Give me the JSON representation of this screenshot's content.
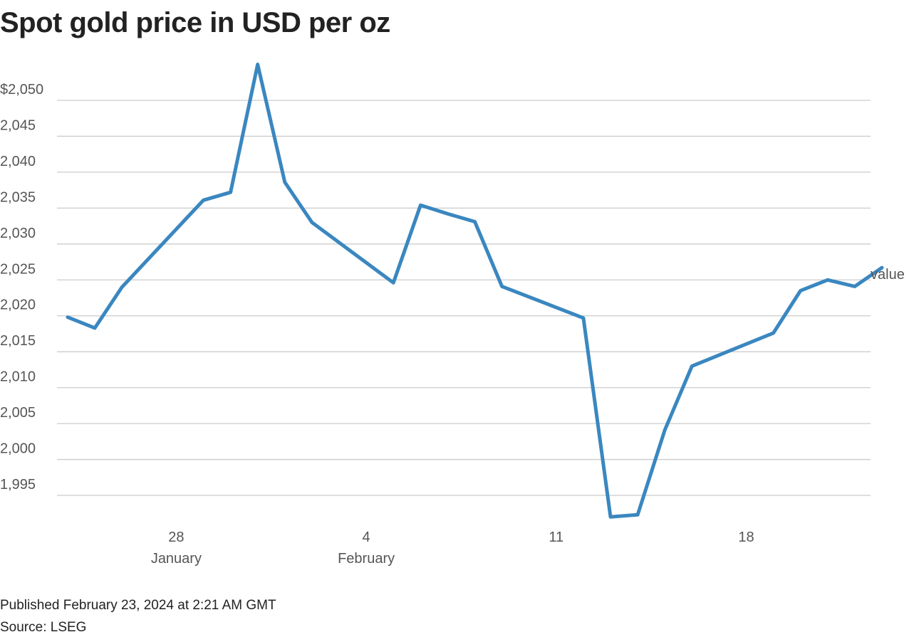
{
  "title": "Spot gold price in USD per oz",
  "footer": {
    "published": "Published February 23, 2024 at 2:21 AM GMT",
    "source": "Source: LSEG"
  },
  "colors": {
    "line": "#3a87c0",
    "grid": "#cccccc",
    "axis_text": "#555555",
    "title": "#222222"
  },
  "chart_data": {
    "type": "line",
    "title": "Spot gold price in USD per oz",
    "xlabel": "",
    "ylabel": "",
    "grid": true,
    "legend": "none",
    "series": [
      {
        "name": "value",
        "x": [
          "2024-01-24",
          "2024-01-25",
          "2024-01-26",
          "2024-01-29",
          "2024-01-30",
          "2024-01-31",
          "2024-02-01",
          "2024-02-02",
          "2024-02-05",
          "2024-02-06",
          "2024-02-07",
          "2024-02-08",
          "2024-02-09",
          "2024-02-12",
          "2024-02-13",
          "2024-02-14",
          "2024-02-15",
          "2024-02-16",
          "2024-02-19",
          "2024-02-20",
          "2024-02-21",
          "2024-02-22",
          "2024-02-23"
        ],
        "values": [
          2019.8,
          2018.3,
          2024.0,
          2036.1,
          2037.2,
          2055.0,
          2038.6,
          2033.0,
          2024.6,
          2035.4,
          2034.2,
          2033.1,
          2024.1,
          2019.7,
          1992.0,
          1992.3,
          2004.1,
          2013.0,
          2017.6,
          2023.5,
          2025.0,
          2024.1,
          2026.7
        ]
      }
    ],
    "series_label": "value",
    "y_ticks": [
      {
        "value": 2050,
        "label": "$2,050"
      },
      {
        "value": 2045,
        "label": "2,045"
      },
      {
        "value": 2040,
        "label": "2,040"
      },
      {
        "value": 2035,
        "label": "2,035"
      },
      {
        "value": 2030,
        "label": "2,030"
      },
      {
        "value": 2025,
        "label": "2,025"
      },
      {
        "value": 2020,
        "label": "2,020"
      },
      {
        "value": 2015,
        "label": "2,015"
      },
      {
        "value": 2010,
        "label": "2,010"
      },
      {
        "value": 2005,
        "label": "2,005"
      },
      {
        "value": 2000,
        "label": "2,000"
      },
      {
        "value": 1995,
        "label": "1,995"
      }
    ],
    "x_ticks": [
      {
        "date": "2024-01-28",
        "label": "28",
        "sublabel": "January"
      },
      {
        "date": "2024-02-04",
        "label": "4",
        "sublabel": "February"
      },
      {
        "date": "2024-02-11",
        "label": "11",
        "sublabel": ""
      },
      {
        "date": "2024-02-18",
        "label": "18",
        "sublabel": ""
      }
    ],
    "xlim": [
      "2024-01-24",
      "2024-02-23"
    ],
    "ylim": [
      1992,
      2055
    ]
  }
}
